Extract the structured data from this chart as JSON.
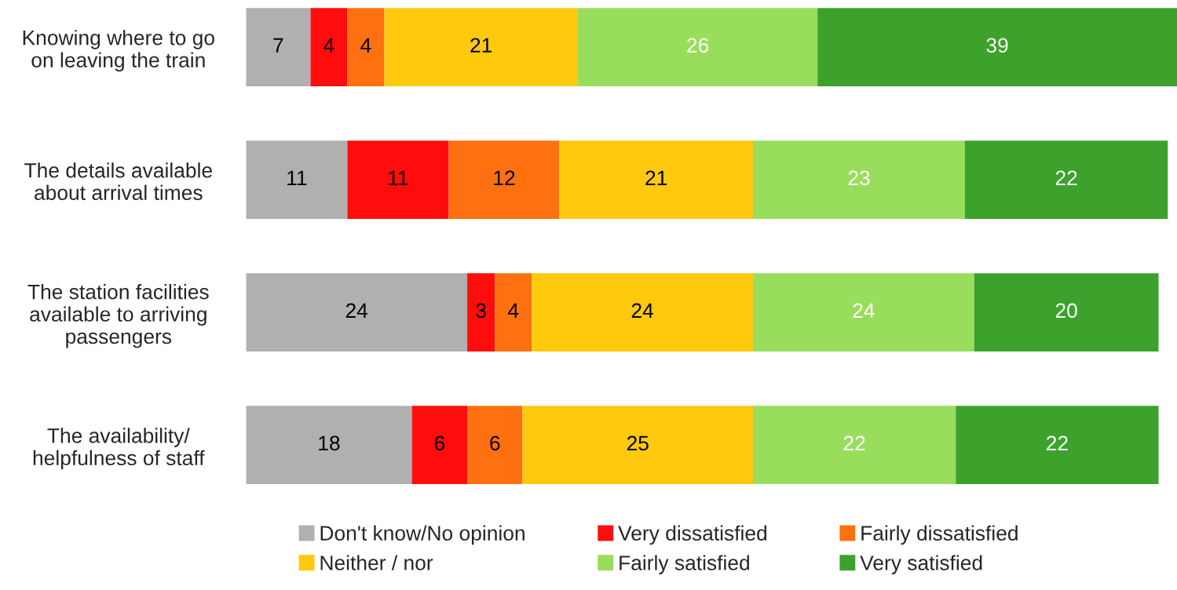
{
  "chart_data": {
    "type": "bar",
    "orientation": "horizontal",
    "stacked": true,
    "data_labels": true,
    "legend": "bottom",
    "grid": false,
    "tick_labels": "y",
    "categories": [
      "Knowing where to go\non leaving the train",
      "The details available\nabout arrival times",
      "The station facilities\navailable to arriving\npassengers",
      "The availability/\nhelpfulness of staff"
    ],
    "series": [
      {
        "name": "Don't know/No opinion",
        "color": "#b0b0b0",
        "values": [
          7,
          11,
          24,
          18
        ]
      },
      {
        "name": "Very dissatisfied",
        "color": "#ff0d0d",
        "values": [
          4,
          11,
          3,
          6
        ]
      },
      {
        "name": "Fairly dissatisfied",
        "color": "#ff7010",
        "values": [
          4,
          12,
          4,
          6
        ]
      },
      {
        "name": "Neither / nor",
        "color": "#ffc90e",
        "values": [
          21,
          21,
          24,
          25
        ]
      },
      {
        "name": "Fairly satisfied",
        "color": "#99dd5c",
        "values": [
          26,
          23,
          24,
          22
        ]
      },
      {
        "name": "Very satisfied",
        "color": "#3ca22c",
        "values": [
          39,
          22,
          20,
          22
        ]
      }
    ]
  }
}
